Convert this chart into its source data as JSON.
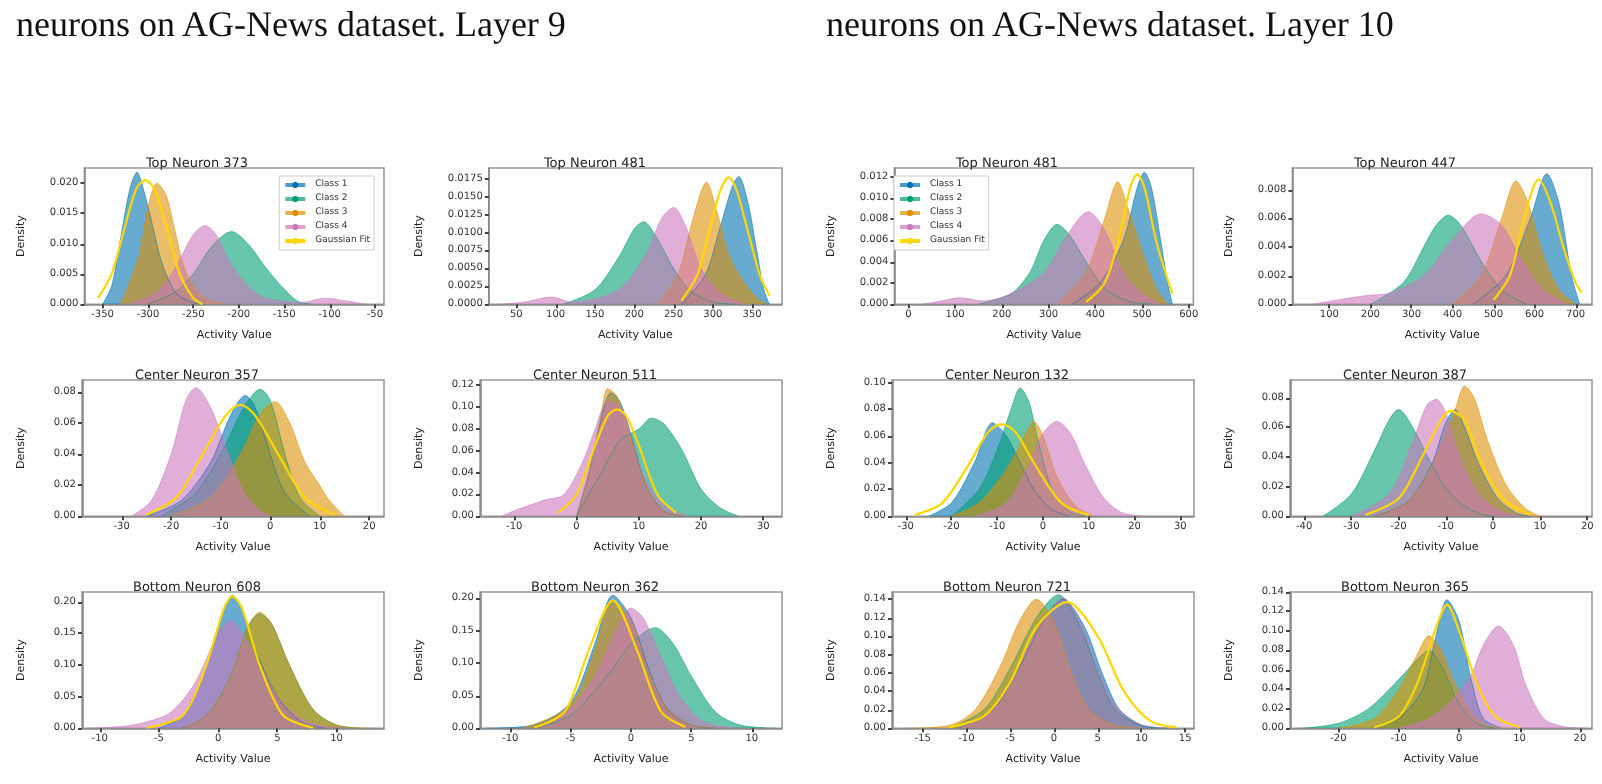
{
  "chart_data": [
    {
      "type": "area",
      "title": "Top Neuron 373",
      "xlabel": "Activity Value",
      "ylabel": "Density",
      "annotations": [
        "neurons on AG-News dataset. Layer 9"
      ],
      "legend": "top right",
      "xlim": [
        -370,
        -40
      ],
      "xticks": [
        -350,
        -300,
        -250,
        -200,
        -150,
        -100,
        -50
      ],
      "ylim": [
        0,
        0.0225
      ],
      "yticks": [
        {
          "value": 0,
          "label": "0.000"
        },
        {
          "value": 0.005,
          "label": "0.005"
        },
        {
          "value": 0.01,
          "label": "0.010"
        },
        {
          "value": 0.015,
          "label": "0.015"
        },
        {
          "value": 0.02,
          "label": "0.020"
        }
      ],
      "series": [
        {
          "name": "Class 1",
          "color": "#0173b2",
          "x": [
            -350,
            -340,
            -330,
            -320,
            -312,
            -305,
            -295,
            -285,
            -270,
            -255,
            -240
          ],
          "values": [
            0,
            0.003,
            0.011,
            0.019,
            0.0218,
            0.019,
            0.013,
            0.007,
            0.002,
            0.0005,
            0
          ]
        },
        {
          "name": "Class 2",
          "color": "#029e73",
          "x": [
            -300,
            -270,
            -250,
            -230,
            -208,
            -190,
            -170,
            -150,
            -135,
            -120
          ],
          "values": [
            0,
            0.002,
            0.005,
            0.0095,
            0.012,
            0.01,
            0.006,
            0.0025,
            0.0005,
            0
          ]
        },
        {
          "name": "Class 3",
          "color": "#de8f05",
          "x": [
            -330,
            -310,
            -300,
            -290,
            -280,
            -270,
            -260,
            -245,
            -230,
            -215
          ],
          "values": [
            0,
            0.008,
            0.016,
            0.02,
            0.018,
            0.012,
            0.006,
            0.002,
            0.0005,
            0
          ]
        },
        {
          "name": "Class 4",
          "color": "#cc78bc",
          "x": [
            -320,
            -290,
            -270,
            -250,
            -237,
            -225,
            -210,
            -190,
            -170,
            -130,
            -105,
            -80,
            -60
          ],
          "values": [
            0,
            0.002,
            0.006,
            0.0115,
            0.013,
            0.0115,
            0.007,
            0.003,
            0.001,
            0.0003,
            0.001,
            0.0005,
            0
          ]
        },
        {
          "name": "Gaussian Fit",
          "type": "line",
          "color": "#ffd700",
          "x": [
            -355,
            -340,
            -325,
            -313,
            -303,
            -293,
            -280,
            -265,
            -250,
            -240
          ],
          "values": [
            0.001,
            0.005,
            0.013,
            0.019,
            0.0205,
            0.019,
            0.013,
            0.005,
            0.001,
            0
          ]
        }
      ]
    },
    {
      "type": "area",
      "title": "Top Neuron 481",
      "xlabel": "Activity Value",
      "ylabel": "Density",
      "xlim": [
        15,
        388
      ],
      "xticks": [
        50,
        100,
        150,
        200,
        250,
        300,
        350
      ],
      "ylim": [
        0,
        0.019
      ],
      "yticks": [
        {
          "value": 0,
          "label": "0.0000"
        },
        {
          "value": 0.0025,
          "label": "0.0025"
        },
        {
          "value": 0.005,
          "label": "0.0050"
        },
        {
          "value": 0.0075,
          "label": "0.0075"
        },
        {
          "value": 0.01,
          "label": "0.0100"
        },
        {
          "value": 0.0125,
          "label": "0.0125"
        },
        {
          "value": 0.015,
          "label": "0.0150"
        },
        {
          "value": 0.0175,
          "label": "0.0175"
        }
      ],
      "series": [
        {
          "color": "#0173b2",
          "x": [
            260,
            290,
            310,
            325,
            333,
            345,
            355,
            365,
            372
          ],
          "values": [
            0,
            0.004,
            0.011,
            0.0165,
            0.0178,
            0.014,
            0.008,
            0.002,
            0
          ]
        },
        {
          "color": "#029e73",
          "x": [
            110,
            150,
            180,
            200,
            212,
            230,
            250,
            270,
            300,
            330
          ],
          "values": [
            0,
            0.002,
            0.0065,
            0.0105,
            0.0115,
            0.009,
            0.005,
            0.002,
            0.0003,
            0
          ]
        },
        {
          "color": "#de8f05",
          "x": [
            230,
            255,
            275,
            292,
            305,
            320,
            340,
            360,
            370
          ],
          "values": [
            0,
            0.004,
            0.012,
            0.017,
            0.013,
            0.007,
            0.003,
            0.0005,
            0
          ]
        },
        {
          "color": "#cc78bc",
          "x": [
            30,
            60,
            95,
            120,
            180,
            215,
            235,
            250,
            265,
            285,
            310,
            340
          ],
          "values": [
            0,
            0.0003,
            0.001,
            0.0003,
            0.002,
            0.007,
            0.012,
            0.0135,
            0.011,
            0.005,
            0.0015,
            0
          ]
        },
        {
          "type": "line",
          "color": "#ffd700",
          "x": [
            260,
            280,
            295,
            310,
            320,
            330,
            345,
            360,
            372
          ],
          "values": [
            0.0005,
            0.004,
            0.01,
            0.016,
            0.0177,
            0.016,
            0.01,
            0.004,
            0.0012
          ]
        }
      ]
    },
    {
      "type": "area",
      "title": "Center Neuron 357",
      "xlabel": "Activity Value",
      "ylabel": "Density",
      "xlim": [
        -38,
        23
      ],
      "xticks": [
        -30,
        -20,
        -10,
        0,
        10,
        20
      ],
      "ylim": [
        0,
        0.088
      ],
      "yticks": [
        {
          "value": 0,
          "label": "0.00"
        },
        {
          "value": 0.02,
          "label": "0.02"
        },
        {
          "value": 0.04,
          "label": "0.04"
        },
        {
          "value": 0.06,
          "label": "0.06"
        },
        {
          "value": 0.08,
          "label": "0.08"
        }
      ],
      "series": [
        {
          "color": "#0173b2",
          "x": [
            -25,
            -18,
            -12,
            -8,
            -5,
            -3,
            0,
            3,
            8
          ],
          "values": [
            0,
            0.01,
            0.035,
            0.065,
            0.078,
            0.07,
            0.04,
            0.015,
            0
          ]
        },
        {
          "color": "#029e73",
          "x": [
            -22,
            -15,
            -10,
            -5,
            -2,
            0,
            3,
            6,
            10
          ],
          "values": [
            0,
            0.015,
            0.04,
            0.072,
            0.082,
            0.075,
            0.04,
            0.012,
            0
          ]
        },
        {
          "color": "#de8f05",
          "x": [
            -20,
            -12,
            -6,
            -2,
            1,
            4,
            7,
            10,
            12,
            15
          ],
          "values": [
            0,
            0.012,
            0.04,
            0.066,
            0.074,
            0.06,
            0.035,
            0.02,
            0.01,
            0
          ]
        },
        {
          "color": "#cc78bc",
          "x": [
            -28,
            -24,
            -20,
            -17,
            -15,
            -12,
            -9,
            -6,
            -3,
            0
          ],
          "values": [
            0,
            0.01,
            0.04,
            0.075,
            0.083,
            0.07,
            0.045,
            0.02,
            0.006,
            0
          ]
        },
        {
          "type": "line",
          "color": "#ffd700",
          "x": [
            -25,
            -19,
            -14,
            -9,
            -6,
            -3,
            2,
            7,
            13
          ],
          "values": [
            0.001,
            0.012,
            0.038,
            0.065,
            0.072,
            0.065,
            0.038,
            0.012,
            0.001
          ]
        }
      ]
    },
    {
      "type": "area",
      "title": "Center Neuron 511",
      "xlabel": "Activity Value",
      "ylabel": "Density",
      "xlim": [
        -15.5,
        33
      ],
      "xticks": [
        -10,
        0,
        10,
        20,
        30
      ],
      "ylim": [
        0,
        0.125
      ],
      "yticks": [
        {
          "value": 0,
          "label": "0.00"
        },
        {
          "value": 0.02,
          "label": "0.02"
        },
        {
          "value": 0.04,
          "label": "0.04"
        },
        {
          "value": 0.06,
          "label": "0.06"
        },
        {
          "value": 0.08,
          "label": "0.08"
        },
        {
          "value": 0.1,
          "label": "0.10"
        },
        {
          "value": 0.12,
          "label": "0.12"
        }
      ],
      "series": [
        {
          "color": "#0173b2",
          "x": [
            0,
            2,
            4,
            5.5,
            7,
            9,
            11,
            14,
            17
          ],
          "values": [
            0,
            0.04,
            0.09,
            0.113,
            0.105,
            0.07,
            0.03,
            0.005,
            0
          ]
        },
        {
          "color": "#029e73",
          "x": [
            0,
            4,
            7,
            10,
            12,
            14,
            17,
            20,
            23,
            26
          ],
          "values": [
            0,
            0.04,
            0.07,
            0.08,
            0.09,
            0.085,
            0.06,
            0.025,
            0.008,
            0
          ]
        },
        {
          "color": "#de8f05",
          "x": [
            0,
            2,
            4,
            5,
            6.5,
            8.5,
            11,
            14,
            17
          ],
          "values": [
            0,
            0.04,
            0.095,
            0.117,
            0.11,
            0.075,
            0.03,
            0.005,
            0
          ]
        },
        {
          "color": "#cc78bc",
          "x": [
            -12,
            -10,
            -5,
            -2,
            1,
            3,
            5,
            7,
            9,
            11,
            14,
            18
          ],
          "values": [
            0,
            0.005,
            0.015,
            0.02,
            0.05,
            0.08,
            0.105,
            0.1,
            0.07,
            0.035,
            0.01,
            0
          ]
        },
        {
          "type": "line",
          "color": "#ffd700",
          "x": [
            -3,
            0,
            3,
            5,
            6.5,
            8,
            10,
            13,
            16
          ],
          "values": [
            0.003,
            0.02,
            0.065,
            0.092,
            0.098,
            0.092,
            0.065,
            0.02,
            0.003
          ]
        }
      ]
    },
    {
      "type": "area",
      "title": "Bottom Neuron 608",
      "xlabel": "Activity Value",
      "ylabel": "Density",
      "xlim": [
        -11.5,
        14
      ],
      "xticks": [
        -10,
        -5,
        0,
        5,
        10
      ],
      "ylim": [
        0,
        0.215
      ],
      "yticks": [
        {
          "value": 0,
          "label": "0.00"
        },
        {
          "value": 0.05,
          "label": "0.05"
        },
        {
          "value": 0.1,
          "label": "0.10"
        },
        {
          "value": 0.15,
          "label": "0.15"
        },
        {
          "value": 0.2,
          "label": "0.20"
        }
      ],
      "series": [
        {
          "color": "#0173b2",
          "x": [
            -5,
            -3,
            -1,
            0.5,
            1.2,
            2,
            3,
            5,
            7,
            9
          ],
          "values": [
            0,
            0.02,
            0.1,
            0.19,
            0.21,
            0.19,
            0.13,
            0.05,
            0.01,
            0
          ]
        },
        {
          "color": "#029e73",
          "x": [
            -3,
            -1,
            1,
            2.5,
            3.5,
            4.5,
            6,
            8,
            10,
            12
          ],
          "values": [
            0,
            0.02,
            0.08,
            0.16,
            0.18,
            0.165,
            0.1,
            0.03,
            0.005,
            0
          ]
        },
        {
          "color": "#de8f05",
          "x": [
            -3,
            -1,
            1,
            2.5,
            3.5,
            4.5,
            6,
            8,
            10,
            13
          ],
          "values": [
            0,
            0.02,
            0.08,
            0.16,
            0.183,
            0.165,
            0.1,
            0.03,
            0.005,
            0
          ]
        },
        {
          "color": "#cc78bc",
          "x": [
            -11,
            -8,
            -6,
            -4,
            -2,
            0,
            1,
            2,
            3.5,
            5,
            7,
            9,
            11
          ],
          "values": [
            0,
            0.003,
            0.01,
            0.025,
            0.07,
            0.15,
            0.17,
            0.15,
            0.1,
            0.05,
            0.015,
            0.003,
            0
          ]
        },
        {
          "type": "line",
          "color": "#ffd700",
          "x": [
            -6,
            -3,
            -1,
            0.5,
            1.2,
            2,
            3.5,
            5.5,
            8
          ],
          "values": [
            0.001,
            0.02,
            0.1,
            0.19,
            0.208,
            0.19,
            0.1,
            0.02,
            0.001
          ]
        }
      ]
    },
    {
      "type": "area",
      "title": "Bottom Neuron 362",
      "xlabel": "Activity Value",
      "ylabel": "Density",
      "xlim": [
        -12.5,
        12.5
      ],
      "xticks": [
        -10,
        -5,
        0,
        5,
        10
      ],
      "ylim": [
        0,
        0.21
      ],
      "yticks": [
        {
          "value": 0,
          "label": "0.00"
        },
        {
          "value": 0.05,
          "label": "0.05"
        },
        {
          "value": 0.1,
          "label": "0.10"
        },
        {
          "value": 0.15,
          "label": "0.15"
        },
        {
          "value": 0.2,
          "label": "0.20"
        }
      ],
      "series": [
        {
          "color": "#0173b2",
          "x": [
            -12,
            -8,
            -5,
            -3,
            -1.5,
            0,
            1.5,
            3,
            5,
            7
          ],
          "values": [
            0,
            0.005,
            0.04,
            0.13,
            0.205,
            0.17,
            0.09,
            0.03,
            0.005,
            0
          ]
        },
        {
          "color": "#029e73",
          "x": [
            -8,
            -5,
            -2,
            0,
            2,
            3.5,
            5,
            7,
            9,
            12
          ],
          "values": [
            0,
            0.02,
            0.08,
            0.13,
            0.155,
            0.13,
            0.08,
            0.025,
            0.005,
            0
          ]
        },
        {
          "color": "#de8f05",
          "x": [
            -9,
            -5,
            -3,
            -1.5,
            0,
            1.5,
            3,
            5,
            7
          ],
          "values": [
            0,
            0.035,
            0.12,
            0.197,
            0.165,
            0.085,
            0.03,
            0.005,
            0
          ]
        },
        {
          "color": "#cc78bc",
          "x": [
            -8,
            -5,
            -3,
            -1,
            0,
            1,
            2.5,
            4,
            6,
            9
          ],
          "values": [
            0,
            0.03,
            0.08,
            0.16,
            0.185,
            0.17,
            0.11,
            0.05,
            0.01,
            0
          ]
        },
        {
          "type": "line",
          "color": "#ffd700",
          "x": [
            -8,
            -5.5,
            -3.5,
            -1.5,
            0.5,
            2.5,
            4.5
          ],
          "values": [
            0.001,
            0.025,
            0.12,
            0.197,
            0.12,
            0.025,
            0.002
          ]
        }
      ]
    },
    {
      "type": "area",
      "title": "Top Neuron 481",
      "xlabel": "Activity Value",
      "ylabel": "Density",
      "annotations": [
        "neurons on AG-News dataset. Layer 10"
      ],
      "legend": "top left",
      "xlim": [
        -30,
        610
      ],
      "xticks": [
        0,
        100,
        200,
        300,
        400,
        500,
        600
      ],
      "ylim": [
        0,
        0.0128
      ],
      "yticks": [
        {
          "value": 0,
          "label": "0.000"
        },
        {
          "value": 0.002,
          "label": "0.002"
        },
        {
          "value": 0.004,
          "label": "0.004"
        },
        {
          "value": 0.006,
          "label": "0.006"
        },
        {
          "value": 0.008,
          "label": "0.008"
        },
        {
          "value": 0.01,
          "label": "0.010"
        },
        {
          "value": 0.012,
          "label": "0.012"
        }
      ],
      "series": [
        {
          "name": "Class 1",
          "color": "#0173b2",
          "x": [
            350,
            410,
            460,
            490,
            505,
            520,
            540,
            555,
            565
          ],
          "values": [
            0,
            0.002,
            0.006,
            0.011,
            0.0124,
            0.011,
            0.006,
            0.002,
            0
          ]
        },
        {
          "name": "Class 2",
          "color": "#029e73",
          "x": [
            150,
            220,
            260,
            290,
            318,
            345,
            380,
            420,
            470,
            520
          ],
          "values": [
            0,
            0.001,
            0.003,
            0.006,
            0.0075,
            0.0065,
            0.004,
            0.0015,
            0.0003,
            0
          ]
        },
        {
          "name": "Class 3",
          "color": "#de8f05",
          "x": [
            320,
            380,
            420,
            448,
            470,
            500,
            530,
            555
          ],
          "values": [
            0,
            0.003,
            0.008,
            0.0115,
            0.009,
            0.005,
            0.0015,
            0
          ]
        },
        {
          "name": "Class 4",
          "color": "#cc78bc",
          "x": [
            30,
            70,
            110,
            160,
            220,
            290,
            340,
            385,
            420,
            460,
            500,
            540
          ],
          "values": [
            0,
            0.0003,
            0.0006,
            0.0003,
            0.001,
            0.003,
            0.0065,
            0.0087,
            0.007,
            0.003,
            0.001,
            0
          ]
        },
        {
          "name": "Gaussian Fit",
          "type": "line",
          "color": "#ffd700",
          "x": [
            380,
            420,
            450,
            475,
            490,
            505,
            530,
            550,
            565
          ],
          "values": [
            0.0002,
            0.002,
            0.006,
            0.011,
            0.0122,
            0.011,
            0.006,
            0.003,
            0.001
          ]
        }
      ]
    },
    {
      "type": "area",
      "title": "Top Neuron 447",
      "xlabel": "Activity Value",
      "ylabel": "Density",
      "xlim": [
        10,
        740
      ],
      "xticks": [
        100,
        200,
        300,
        400,
        500,
        600,
        700
      ],
      "ylim": [
        0,
        0.0095
      ],
      "yticks": [
        {
          "value": 0,
          "label": "0.000"
        },
        {
          "value": 0.002,
          "label": "0.002"
        },
        {
          "value": 0.004,
          "label": "0.004"
        },
        {
          "value": 0.006,
          "label": "0.006"
        },
        {
          "value": 0.008,
          "label": "0.008"
        }
      ],
      "series": [
        {
          "color": "#0173b2",
          "x": [
            450,
            530,
            590,
            630,
            660,
            690,
            710
          ],
          "values": [
            0,
            0.002,
            0.006,
            0.0091,
            0.007,
            0.002,
            0
          ]
        },
        {
          "color": "#029e73",
          "x": [
            200,
            280,
            330,
            360,
            390,
            420,
            470,
            520,
            580
          ],
          "values": [
            0,
            0.0015,
            0.004,
            0.0055,
            0.0062,
            0.0055,
            0.003,
            0.001,
            0
          ]
        },
        {
          "color": "#de8f05",
          "x": [
            400,
            470,
            520,
            555,
            585,
            620,
            660,
            700
          ],
          "values": [
            0,
            0.002,
            0.006,
            0.0086,
            0.007,
            0.0035,
            0.001,
            0
          ]
        },
        {
          "color": "#cc78bc",
          "x": [
            60,
            120,
            190,
            250,
            330,
            400,
            470,
            520,
            570,
            620,
            680
          ],
          "values": [
            0,
            0.0003,
            0.0006,
            0.0008,
            0.002,
            0.0045,
            0.0063,
            0.0055,
            0.003,
            0.001,
            0
          ]
        },
        {
          "type": "line",
          "color": "#ffd700",
          "x": [
            500,
            540,
            575,
            610,
            640,
            670,
            700,
            715
          ],
          "values": [
            0.0003,
            0.002,
            0.006,
            0.0087,
            0.007,
            0.004,
            0.0015,
            0.0008
          ]
        }
      ]
    },
    {
      "type": "area",
      "title": "Center Neuron 132",
      "xlabel": "Activity Value",
      "ylabel": "Density",
      "xlim": [
        -33,
        33
      ],
      "xticks": [
        -30,
        -20,
        -10,
        0,
        10,
        20,
        30
      ],
      "ylim": [
        0,
        0.102
      ],
      "yticks": [
        {
          "value": 0,
          "label": "0.00"
        },
        {
          "value": 0.02,
          "label": "0.02"
        },
        {
          "value": 0.04,
          "label": "0.04"
        },
        {
          "value": 0.06,
          "label": "0.06"
        },
        {
          "value": 0.08,
          "label": "0.08"
        },
        {
          "value": 0.1,
          "label": "0.10"
        }
      ],
      "series": [
        {
          "color": "#0173b2",
          "x": [
            -25,
            -20,
            -15,
            -11,
            -8,
            -5,
            -2,
            2,
            6
          ],
          "values": [
            0,
            0.01,
            0.04,
            0.07,
            0.06,
            0.04,
            0.02,
            0.005,
            0
          ]
        },
        {
          "color": "#029e73",
          "x": [
            -20,
            -14,
            -10,
            -7,
            -5,
            -3,
            -1,
            2,
            6,
            10
          ],
          "values": [
            0,
            0.02,
            0.05,
            0.08,
            0.096,
            0.085,
            0.055,
            0.02,
            0.003,
            0
          ]
        },
        {
          "color": "#de8f05",
          "x": [
            -20,
            -14,
            -8,
            -4,
            -2,
            0,
            3,
            7,
            11
          ],
          "values": [
            0,
            0.01,
            0.035,
            0.06,
            0.071,
            0.06,
            0.03,
            0.008,
            0
          ]
        },
        {
          "color": "#cc78bc",
          "x": [
            -15,
            -8,
            -3,
            0,
            3,
            6,
            9,
            13,
            17,
            22
          ],
          "values": [
            0,
            0.01,
            0.04,
            0.062,
            0.071,
            0.062,
            0.04,
            0.015,
            0.003,
            0
          ]
        },
        {
          "type": "line",
          "color": "#ffd700",
          "x": [
            -28,
            -22,
            -16,
            -12,
            -9,
            -6,
            -2,
            4,
            10
          ],
          "values": [
            0.001,
            0.01,
            0.04,
            0.063,
            0.069,
            0.063,
            0.04,
            0.01,
            0.001
          ]
        }
      ]
    },
    {
      "type": "area",
      "title": "Center Neuron 387",
      "xlabel": "Activity Value",
      "ylabel": "Density",
      "xlim": [
        -43,
        21
      ],
      "xticks": [
        -40,
        -30,
        -20,
        -10,
        0,
        10,
        20
      ],
      "ylim": [
        0,
        0.092
      ],
      "yticks": [
        {
          "value": 0,
          "label": "0.00"
        },
        {
          "value": 0.02,
          "label": "0.02"
        },
        {
          "value": 0.04,
          "label": "0.04"
        },
        {
          "value": 0.06,
          "label": "0.06"
        },
        {
          "value": 0.08,
          "label": "0.08"
        }
      ],
      "series": [
        {
          "color": "#0173b2",
          "x": [
            -25,
            -18,
            -13,
            -10,
            -8,
            -6,
            -3,
            1,
            5,
            8
          ],
          "values": [
            0,
            0.01,
            0.035,
            0.063,
            0.072,
            0.06,
            0.035,
            0.012,
            0.002,
            0
          ]
        },
        {
          "color": "#029e73",
          "x": [
            -36,
            -30,
            -25,
            -22,
            -20,
            -17,
            -13,
            -9,
            -4,
            0
          ],
          "values": [
            0,
            0.015,
            0.045,
            0.065,
            0.072,
            0.06,
            0.035,
            0.015,
            0.003,
            0
          ]
        },
        {
          "color": "#de8f05",
          "x": [
            -25,
            -18,
            -12,
            -8,
            -6,
            -4,
            -1,
            3,
            7,
            10
          ],
          "values": [
            0,
            0.01,
            0.04,
            0.072,
            0.088,
            0.08,
            0.05,
            0.02,
            0.005,
            0
          ]
        },
        {
          "color": "#cc78bc",
          "x": [
            -30,
            -22,
            -17,
            -14,
            -12,
            -10,
            -7,
            -3,
            2,
            6
          ],
          "values": [
            0,
            0.015,
            0.05,
            0.075,
            0.079,
            0.07,
            0.04,
            0.015,
            0.003,
            0
          ]
        },
        {
          "type": "line",
          "color": "#ffd700",
          "x": [
            -27,
            -20,
            -15,
            -11,
            -9,
            -6,
            -3,
            2,
            8
          ],
          "values": [
            0.001,
            0.012,
            0.04,
            0.065,
            0.071,
            0.065,
            0.04,
            0.012,
            0.001
          ]
        }
      ]
    },
    {
      "type": "area",
      "title": "Bottom Neuron 721",
      "xlabel": "Activity Value",
      "ylabel": "Density",
      "xlim": [
        -18.5,
        16
      ],
      "xticks": [
        -15,
        -10,
        -5,
        0,
        5,
        10,
        15
      ],
      "ylim": [
        0,
        0.148
      ],
      "yticks": [
        {
          "value": 0,
          "label": "0.00"
        },
        {
          "value": 0.02,
          "label": "0.02"
        },
        {
          "value": 0.04,
          "label": "0.04"
        },
        {
          "value": 0.06,
          "label": "0.06"
        },
        {
          "value": 0.08,
          "label": "0.08"
        },
        {
          "value": 0.1,
          "label": "0.10"
        },
        {
          "value": 0.12,
          "label": "0.12"
        },
        {
          "value": 0.14,
          "label": "0.14"
        }
      ],
      "series": [
        {
          "color": "#0173b2",
          "x": [
            -11,
            -7,
            -4,
            -1,
            1,
            3.5,
            5.5,
            7.5,
            10,
            13
          ],
          "values": [
            0,
            0.02,
            0.065,
            0.12,
            0.14,
            0.11,
            0.06,
            0.02,
            0.003,
            0
          ]
        },
        {
          "color": "#029e73",
          "x": [
            -12,
            -8,
            -5,
            -2,
            0.5,
            3,
            5,
            7,
            10,
            13
          ],
          "values": [
            0,
            0.02,
            0.065,
            0.12,
            0.145,
            0.11,
            0.06,
            0.02,
            0.003,
            0
          ]
        },
        {
          "color": "#de8f05",
          "x": [
            -17,
            -12,
            -9,
            -6,
            -4,
            -2,
            0,
            2,
            4,
            7,
            10
          ],
          "values": [
            0,
            0.003,
            0.02,
            0.07,
            0.115,
            0.14,
            0.115,
            0.06,
            0.02,
            0.003,
            0
          ]
        },
        {
          "color": "#cc78bc",
          "x": [
            -11,
            -7,
            -4,
            -1,
            1,
            3,
            5,
            7,
            10,
            14
          ],
          "values": [
            0,
            0.02,
            0.07,
            0.12,
            0.142,
            0.115,
            0.065,
            0.025,
            0.004,
            0
          ]
        },
        {
          "type": "line",
          "color": "#ffd700",
          "x": [
            -12,
            -8,
            -5,
            -2,
            1.5,
            5,
            8,
            11,
            14
          ],
          "values": [
            0.001,
            0.013,
            0.05,
            0.11,
            0.137,
            0.1,
            0.04,
            0.008,
            0.001
          ]
        }
      ]
    },
    {
      "type": "area",
      "title": "Bottom Neuron 365",
      "xlabel": "Activity Value",
      "ylabel": "Density",
      "xlim": [
        -28,
        22
      ],
      "xticks": [
        -20,
        -10,
        0,
        10,
        20
      ],
      "ylim": [
        0,
        0.14
      ],
      "yticks": [
        {
          "value": 0,
          "label": "0.00"
        },
        {
          "value": 0.02,
          "label": "0.02"
        },
        {
          "value": 0.04,
          "label": "0.04"
        },
        {
          "value": 0.06,
          "label": "0.06"
        },
        {
          "value": 0.08,
          "label": "0.08"
        },
        {
          "value": 0.1,
          "label": "0.10"
        },
        {
          "value": 0.12,
          "label": "0.12"
        },
        {
          "value": 0.14,
          "label": "0.14"
        }
      ],
      "series": [
        {
          "color": "#0173b2",
          "x": [
            -14,
            -10,
            -6,
            -4,
            -2,
            0,
            2,
            4,
            7
          ],
          "values": [
            0,
            0.01,
            0.04,
            0.09,
            0.132,
            0.11,
            0.05,
            0.01,
            0
          ]
        },
        {
          "color": "#029e73",
          "x": [
            -26,
            -20,
            -15,
            -10,
            -7,
            -5,
            -3,
            0,
            3,
            6
          ],
          "values": [
            0,
            0.005,
            0.02,
            0.05,
            0.07,
            0.08,
            0.065,
            0.025,
            0.005,
            0
          ]
        },
        {
          "color": "#de8f05",
          "x": [
            -20,
            -14,
            -10,
            -7,
            -5,
            -3,
            -1,
            2,
            5,
            8
          ],
          "values": [
            0,
            0.01,
            0.04,
            0.075,
            0.095,
            0.08,
            0.05,
            0.015,
            0.002,
            0
          ]
        },
        {
          "color": "#cc78bc",
          "x": [
            -10,
            -5,
            -1,
            2,
            4,
            6.5,
            9,
            11,
            14,
            17,
            21
          ],
          "values": [
            0,
            0.01,
            0.03,
            0.055,
            0.085,
            0.105,
            0.085,
            0.045,
            0.01,
            0.002,
            0
          ]
        },
        {
          "type": "line",
          "color": "#ffd700",
          "x": [
            -14,
            -10,
            -7,
            -4,
            -2,
            0,
            3,
            6,
            10
          ],
          "values": [
            0.001,
            0.012,
            0.045,
            0.1,
            0.127,
            0.1,
            0.045,
            0.012,
            0.001
          ]
        }
      ]
    }
  ]
}
